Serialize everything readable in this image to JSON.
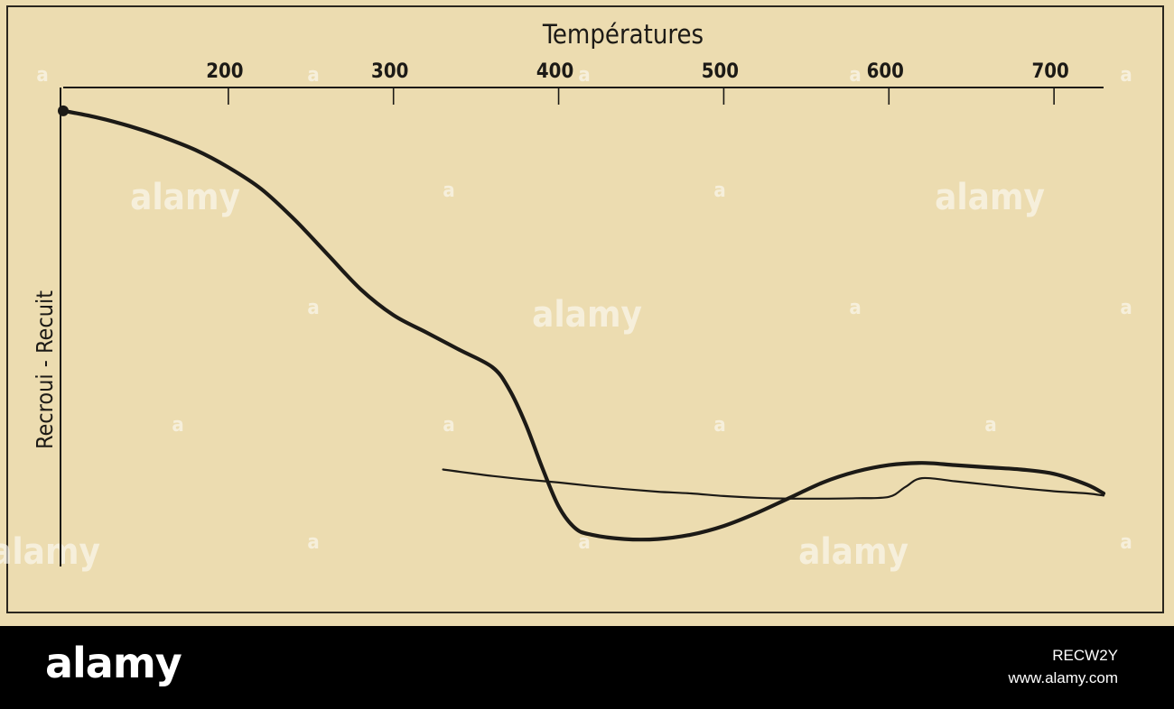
{
  "chart_data": {
    "type": "line",
    "xlabel": "Températures",
    "ylabel": "Recroui - Recuit",
    "xlim": [
      100,
      730
    ],
    "ylim": [
      0,
      100
    ],
    "x_ticks": [
      200,
      300,
      400,
      500,
      600,
      700
    ],
    "x_tick_labels": [
      "200",
      "300",
      "400",
      "500",
      "600",
      "700"
    ],
    "x_axis_position": "top",
    "grid": false,
    "series": [
      {
        "style": "thick",
        "x": [
          100,
          120,
          140,
          160,
          180,
          200,
          220,
          240,
          260,
          280,
          300,
          320,
          340,
          360,
          370,
          380,
          390,
          400,
          410,
          420,
          440,
          460,
          480,
          500,
          520,
          540,
          560,
          580,
          600,
          620,
          640,
          660,
          680,
          700,
          720,
          730
        ],
        "y": [
          99,
          97.5,
          95.5,
          93,
          90,
          86,
          81,
          74,
          66,
          58,
          52,
          48,
          44,
          40,
          35,
          27,
          17,
          8,
          3,
          1.5,
          0.5,
          0.5,
          1.5,
          3.5,
          6.5,
          10,
          13.5,
          16,
          17.5,
          18,
          17.5,
          17,
          16.5,
          15.5,
          13,
          11
        ]
      },
      {
        "style": "thin",
        "x": [
          330,
          360,
          380,
          400,
          420,
          440,
          460,
          480,
          500,
          520,
          540,
          560,
          580,
          600,
          610,
          620,
          640,
          660,
          680,
          700,
          720,
          730
        ],
        "y": [
          16.5,
          15,
          14.2,
          13.5,
          12.7,
          12,
          11.4,
          11,
          10.4,
          10,
          9.8,
          9.8,
          9.9,
          10.2,
          12.5,
          14.5,
          13.8,
          13,
          12.2,
          11.5,
          11,
          10.5
        ]
      }
    ]
  },
  "watermark": {
    "text": "alamy",
    "marker": "a"
  },
  "footer": {
    "logo": "alamy",
    "image_id": "RECW2Y",
    "site": "www.alamy.com"
  },
  "colors": {
    "paper": "#ecdcb0",
    "ink": "#1c1a16",
    "footer": "#000000"
  }
}
